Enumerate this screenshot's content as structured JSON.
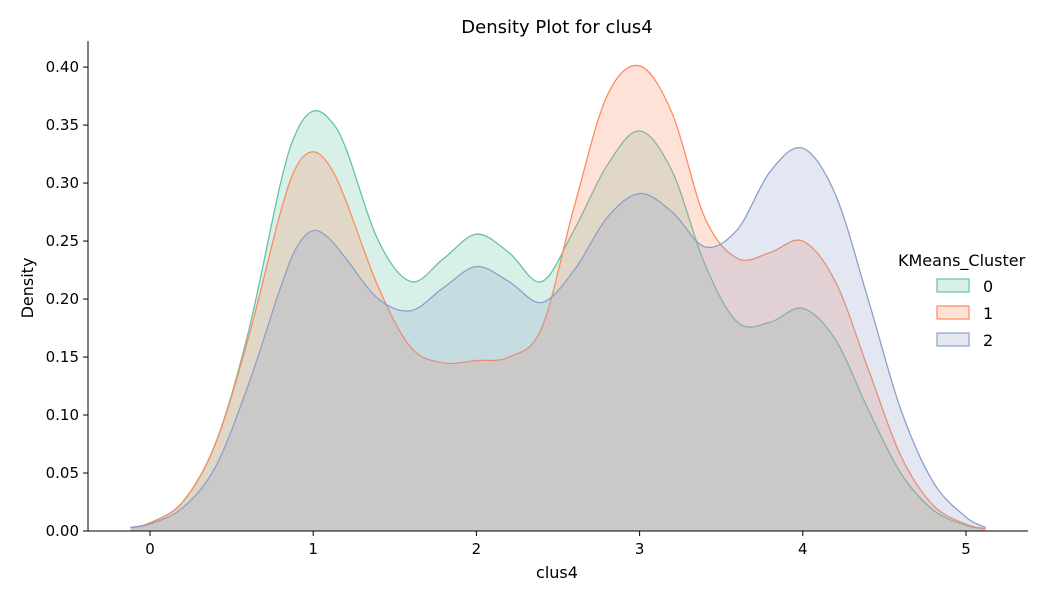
{
  "chart_data": {
    "type": "area",
    "title": "Density Plot for clus4",
    "xlabel": "clus4",
    "ylabel": "Density",
    "xlim": [
      -0.38,
      5.38
    ],
    "ylim": [
      0,
      0.4225
    ],
    "x_ticks": [
      0,
      1,
      2,
      3,
      4,
      5
    ],
    "y_ticks": [
      0.0,
      0.05,
      0.1,
      0.15,
      0.2,
      0.25,
      0.3,
      0.35,
      0.4
    ],
    "y_tick_labels": [
      "0.00",
      "0.05",
      "0.10",
      "0.15",
      "0.20",
      "0.25",
      "0.30",
      "0.35",
      "0.40"
    ],
    "grid": false,
    "legend": {
      "title": "KMeans_Cluster",
      "placement": "right"
    },
    "series": [
      {
        "name": "0",
        "color": "#66c2a5",
        "x": [
          -0.12,
          0.0,
          0.2,
          0.4,
          0.6,
          0.8,
          0.9,
          1.0,
          1.1,
          1.2,
          1.4,
          1.6,
          1.8,
          2.0,
          2.2,
          2.4,
          2.6,
          2.8,
          3.0,
          3.2,
          3.4,
          3.6,
          3.8,
          4.0,
          4.2,
          4.4,
          4.6,
          4.8,
          5.0,
          5.12
        ],
        "values": [
          0.003,
          0.007,
          0.025,
          0.075,
          0.17,
          0.3,
          0.345,
          0.362,
          0.355,
          0.33,
          0.25,
          0.215,
          0.235,
          0.256,
          0.24,
          0.215,
          0.26,
          0.315,
          0.345,
          0.31,
          0.23,
          0.18,
          0.18,
          0.192,
          0.165,
          0.105,
          0.05,
          0.018,
          0.005,
          0.002
        ]
      },
      {
        "name": "1",
        "color": "#fc8d62",
        "x": [
          -0.12,
          0.0,
          0.2,
          0.4,
          0.6,
          0.8,
          0.9,
          1.0,
          1.1,
          1.2,
          1.4,
          1.6,
          1.8,
          2.0,
          2.2,
          2.4,
          2.6,
          2.8,
          3.0,
          3.2,
          3.4,
          3.6,
          3.8,
          4.0,
          4.2,
          4.4,
          4.6,
          4.8,
          5.0,
          5.12
        ],
        "values": [
          0.003,
          0.007,
          0.025,
          0.075,
          0.165,
          0.275,
          0.315,
          0.327,
          0.315,
          0.285,
          0.21,
          0.158,
          0.145,
          0.147,
          0.15,
          0.175,
          0.28,
          0.375,
          0.401,
          0.36,
          0.27,
          0.235,
          0.24,
          0.25,
          0.215,
          0.14,
          0.065,
          0.022,
          0.006,
          0.002
        ]
      },
      {
        "name": "2",
        "color": "#8da0cb",
        "x": [
          -0.12,
          0.0,
          0.2,
          0.4,
          0.6,
          0.8,
          0.9,
          1.0,
          1.1,
          1.2,
          1.4,
          1.6,
          1.8,
          2.0,
          2.2,
          2.4,
          2.6,
          2.8,
          3.0,
          3.2,
          3.4,
          3.6,
          3.8,
          4.0,
          4.2,
          4.4,
          4.6,
          4.8,
          5.0,
          5.12
        ],
        "values": [
          0.003,
          0.006,
          0.02,
          0.055,
          0.125,
          0.21,
          0.245,
          0.259,
          0.252,
          0.235,
          0.2,
          0.19,
          0.21,
          0.228,
          0.215,
          0.197,
          0.225,
          0.27,
          0.291,
          0.275,
          0.245,
          0.26,
          0.31,
          0.33,
          0.29,
          0.2,
          0.105,
          0.042,
          0.012,
          0.003
        ]
      }
    ]
  }
}
